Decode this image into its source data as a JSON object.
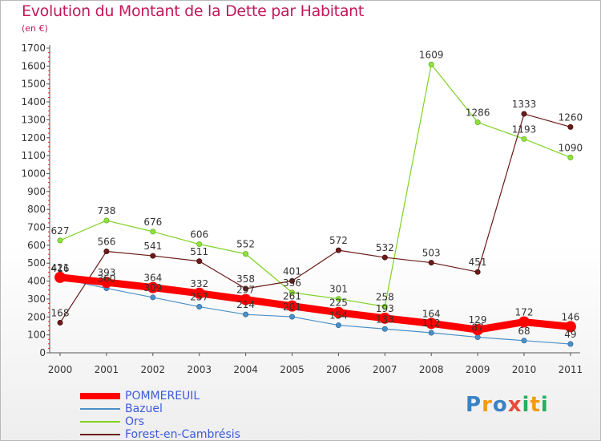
{
  "title": "Evolution du Montant de la Dette par Habitant",
  "subtitle": "(en €)",
  "logo": {
    "p": "P",
    "r": "r",
    "o": "o",
    "x": "x",
    "i1": "i",
    "t": "t",
    "i2": "i"
  },
  "chart_data": {
    "type": "line",
    "title": "Evolution du Montant de la Dette par Habitant",
    "ylabel": "(en €)",
    "xlabel": "",
    "ylim": [
      0,
      1700
    ],
    "yticks": [
      0,
      100,
      200,
      300,
      400,
      500,
      600,
      700,
      800,
      900,
      1000,
      1100,
      1200,
      1300,
      1400,
      1500,
      1600,
      1700
    ],
    "x": [
      "2000",
      "2001",
      "2002",
      "2003",
      "2004",
      "2005",
      "2006",
      "2007",
      "2008",
      "2009",
      "2010",
      "2011"
    ],
    "grid": false,
    "legend": "bottom-left",
    "series": [
      {
        "name": "Bazuel",
        "color": "#4a90c8",
        "values": [
          416,
          360,
          309,
          257,
          214,
          201,
          154,
          133,
          112,
          87,
          68,
          49
        ]
      },
      {
        "name": "Ors",
        "color": "#7ed321",
        "values": [
          627,
          738,
          676,
          606,
          552,
          336,
          301,
          258,
          1609,
          1286,
          1193,
          1090
        ]
      },
      {
        "name": "Forest-en-Cambrésis",
        "color": "#6b1a1a",
        "values": [
          168,
          566,
          541,
          511,
          358,
          401,
          572,
          532,
          503,
          451,
          1333,
          1260
        ]
      },
      {
        "name": "POMMEREUIL",
        "color": "#ff0000",
        "values": [
          421,
          393,
          364,
          332,
          297,
          261,
          225,
          193,
          164,
          129,
          172,
          146
        ]
      }
    ]
  }
}
